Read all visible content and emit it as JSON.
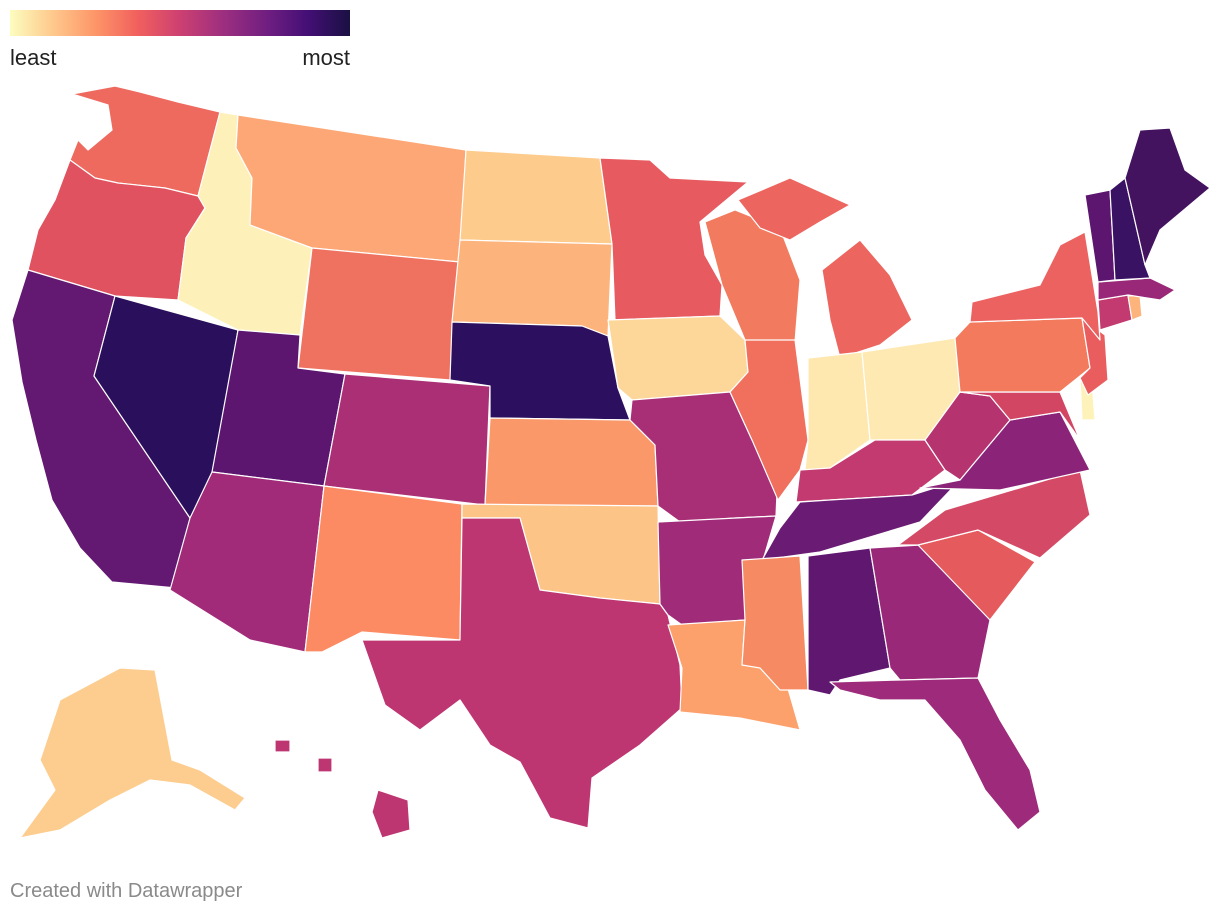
{
  "legend": {
    "low_label": "least",
    "high_label": "most",
    "colors": [
      "#fcfdbf",
      "#fec98d",
      "#fd9668",
      "#f1605d",
      "#cd4071",
      "#9e2f7f",
      "#721f81",
      "#440f76",
      "#1a1042"
    ]
  },
  "footer": {
    "credit": "Created with Datawrapper"
  },
  "states": [
    {
      "name": "Washington",
      "abbr": "WA",
      "color": "#ee6a5f"
    },
    {
      "name": "Oregon",
      "abbr": "OR",
      "color": "#e0525f"
    },
    {
      "name": "California",
      "abbr": "CA",
      "color": "#631872"
    },
    {
      "name": "Nevada",
      "abbr": "NV",
      "color": "#2a0f5c"
    },
    {
      "name": "Idaho",
      "abbr": "ID",
      "color": "#fdf0b8"
    },
    {
      "name": "Montana",
      "abbr": "MT",
      "color": "#fca775"
    },
    {
      "name": "Wyoming",
      "abbr": "WY",
      "color": "#ef715f"
    },
    {
      "name": "Utah",
      "abbr": "UT",
      "color": "#5c1670"
    },
    {
      "name": "Arizona",
      "abbr": "AZ",
      "color": "#a12b78"
    },
    {
      "name": "Colorado",
      "abbr": "CO",
      "color": "#aa2f75"
    },
    {
      "name": "New Mexico",
      "abbr": "NM",
      "color": "#fc8b64"
    },
    {
      "name": "North Dakota",
      "abbr": "ND",
      "color": "#fdcc8d"
    },
    {
      "name": "South Dakota",
      "abbr": "SD",
      "color": "#fdb37c"
    },
    {
      "name": "Nebraska",
      "abbr": "NE",
      "color": "#2c0f5e"
    },
    {
      "name": "Kansas",
      "abbr": "KS",
      "color": "#fb986a"
    },
    {
      "name": "Oklahoma",
      "abbr": "OK",
      "color": "#fdc488"
    },
    {
      "name": "Texas",
      "abbr": "TX",
      "color": "#bd3571"
    },
    {
      "name": "Minnesota",
      "abbr": "MN",
      "color": "#e75b60"
    },
    {
      "name": "Iowa",
      "abbr": "IA",
      "color": "#fdd79a"
    },
    {
      "name": "Missouri",
      "abbr": "MO",
      "color": "#a82e76"
    },
    {
      "name": "Arkansas",
      "abbr": "AR",
      "color": "#a02b78"
    },
    {
      "name": "Louisiana",
      "abbr": "LA",
      "color": "#fca06c"
    },
    {
      "name": "Wisconsin",
      "abbr": "WI",
      "color": "#f27a5e"
    },
    {
      "name": "Illinois",
      "abbr": "IL",
      "color": "#f06f5d"
    },
    {
      "name": "Michigan",
      "abbr": "MI",
      "color": "#ec655f"
    },
    {
      "name": "Indiana",
      "abbr": "IN",
      "color": "#fee8b0"
    },
    {
      "name": "Ohio",
      "abbr": "OH",
      "color": "#fee9b2"
    },
    {
      "name": "Kentucky",
      "abbr": "KY",
      "color": "#c23a70"
    },
    {
      "name": "Tennessee",
      "abbr": "TN",
      "color": "#6a1b73"
    },
    {
      "name": "Mississippi",
      "abbr": "MS",
      "color": "#f68a62"
    },
    {
      "name": "Alabama",
      "abbr": "AL",
      "color": "#601770"
    },
    {
      "name": "Georgia",
      "abbr": "GA",
      "color": "#9a2878"
    },
    {
      "name": "Florida",
      "abbr": "FL",
      "color": "#9d2a7a"
    },
    {
      "name": "South Carolina",
      "abbr": "SC",
      "color": "#e55a5c"
    },
    {
      "name": "North Carolina",
      "abbr": "NC",
      "color": "#d44a66"
    },
    {
      "name": "Virginia",
      "abbr": "VA",
      "color": "#8b2479"
    },
    {
      "name": "West Virginia",
      "abbr": "WV",
      "color": "#b5336f"
    },
    {
      "name": "Maryland",
      "abbr": "MD",
      "color": "#d24664"
    },
    {
      "name": "Delaware",
      "abbr": "DE",
      "color": "#fef2bb"
    },
    {
      "name": "Pennsylvania",
      "abbr": "PA",
      "color": "#f37a5d"
    },
    {
      "name": "New Jersey",
      "abbr": "NJ",
      "color": "#ea5d5f"
    },
    {
      "name": "New York",
      "abbr": "NY",
      "color": "#ec6260"
    },
    {
      "name": "Connecticut",
      "abbr": "CT",
      "color": "#c23a70"
    },
    {
      "name": "Rhode Island",
      "abbr": "RI",
      "color": "#fdb47c"
    },
    {
      "name": "Massachusetts",
      "abbr": "MA",
      "color": "#992878"
    },
    {
      "name": "Vermont",
      "abbr": "VT",
      "color": "#5c1670"
    },
    {
      "name": "New Hampshire",
      "abbr": "NH",
      "color": "#3a1264"
    },
    {
      "name": "Maine",
      "abbr": "ME",
      "color": "#44135f"
    },
    {
      "name": "Alaska",
      "abbr": "AK",
      "color": "#fdcc8f"
    },
    {
      "name": "Hawaii",
      "abbr": "HI",
      "color": "#bd3571"
    }
  ]
}
